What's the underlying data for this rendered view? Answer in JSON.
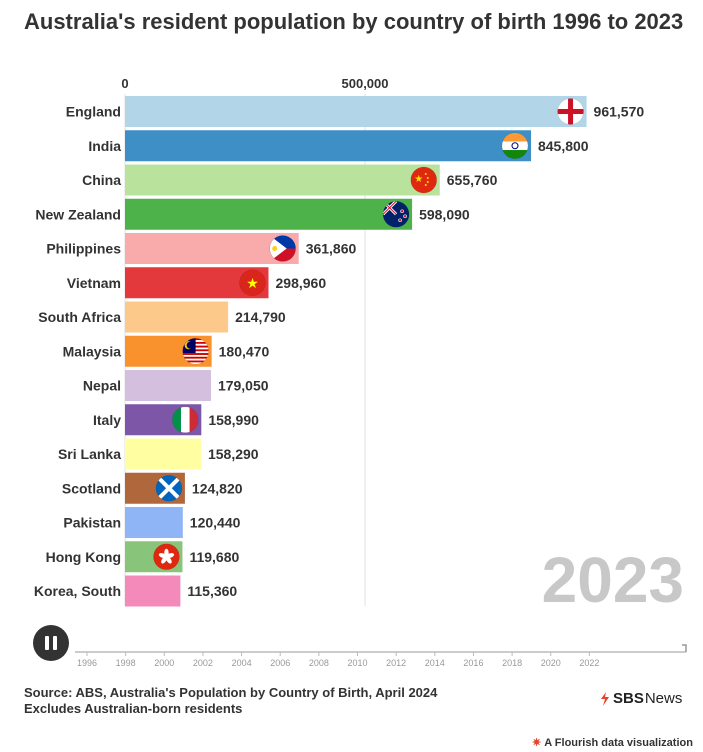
{
  "title": "Australia's resident population by country of birth 1996 to 2023",
  "source_line1": "Source: ABS, Australia's Population by Country of Birth, April 2024",
  "source_line2": "Excludes Australian-born residents",
  "logo": {
    "sbs": "SBS",
    "news": "News"
  },
  "flourish_credit": "A Flourish data visualization",
  "flourish_mark": "✷",
  "controls": {
    "state": "playing",
    "icon": "pause-icon"
  },
  "chart_data": {
    "type": "bar",
    "orientation": "horizontal",
    "current_year": "2023",
    "categories": [
      "England",
      "India",
      "China",
      "New Zealand",
      "Philippines",
      "Vietnam",
      "South Africa",
      "Malaysia",
      "Nepal",
      "Italy",
      "Sri Lanka",
      "Scotland",
      "Pakistan",
      "Hong Kong",
      "Korea, South"
    ],
    "values": [
      961570,
      845800,
      655760,
      598090,
      361860,
      298960,
      214790,
      180470,
      179050,
      158990,
      158290,
      124820,
      120440,
      119680,
      115360
    ],
    "value_labels": [
      "961,570",
      "845,800",
      "655,760",
      "598,090",
      "361,860",
      "298,960",
      "214,790",
      "180,470",
      "179,050",
      "158,990",
      "158,290",
      "124,820",
      "120,440",
      "119,680",
      "115,360"
    ],
    "colors": [
      "#b3d5e8",
      "#3e8fc6",
      "#b9e39c",
      "#4db24a",
      "#f9aaaa",
      "#e3383c",
      "#fcc98a",
      "#f9922c",
      "#d4bfdf",
      "#7e56a8",
      "#ffffa2",
      "#b1673c",
      "#8fb5f6",
      "#88c57a",
      "#f38ab9"
    ],
    "flags": [
      "england-flag-icon",
      "india-flag-icon",
      "china-flag-icon",
      "new-zealand-flag-icon",
      "philippines-flag-icon",
      "vietnam-flag-icon",
      "",
      "malaysia-flag-icon",
      "",
      "italy-flag-icon",
      "",
      "scotland-flag-icon",
      "",
      "hong-kong-flag-icon",
      ""
    ],
    "x_ticks": [
      0,
      500000
    ],
    "x_tick_labels": [
      "0",
      "500,000"
    ],
    "xlim": [
      0,
      1000000
    ],
    "grid": true,
    "timeline": {
      "start": 1996,
      "end": 2023,
      "labels": [
        "1996",
        "1998",
        "2000",
        "2002",
        "2004",
        "2006",
        "2008",
        "2010",
        "2012",
        "2014",
        "2016",
        "2018",
        "2020",
        "2022"
      ]
    }
  }
}
